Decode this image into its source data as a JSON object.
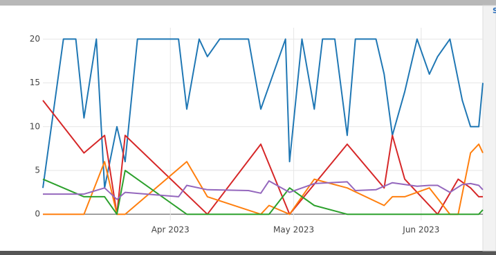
{
  "side_panel": {
    "label": "S"
  },
  "chart_data": {
    "type": "line",
    "xlim": [
      0,
      107
    ],
    "xticks": [
      {
        "value": 31,
        "label": "Apr 2023"
      },
      {
        "value": 61,
        "label": "May 2023"
      },
      {
        "value": 92,
        "label": "Jun 2023"
      }
    ],
    "ylim": [
      -0.7,
      21.3
    ],
    "yticks": [
      0,
      5,
      10,
      15,
      20
    ],
    "grid": true,
    "series": [
      {
        "color": "#1f77b4",
        "x": [
          0,
          5,
          8,
          10,
          13,
          15,
          18,
          20,
          23,
          33,
          35,
          38,
          40,
          43,
          50,
          53,
          59,
          60,
          63,
          66,
          68,
          71,
          74,
          76,
          81,
          83,
          85,
          88,
          91,
          94,
          96,
          99,
          102,
          104,
          106,
          107
        ],
        "values": [
          3,
          20,
          20,
          11,
          20,
          3,
          10,
          6,
          20,
          20,
          12,
          20,
          18,
          20,
          20,
          12,
          20,
          6,
          20,
          12,
          20,
          20,
          9,
          20,
          20,
          16,
          9,
          14,
          20,
          16,
          18,
          20,
          13,
          10,
          10,
          15
        ]
      },
      {
        "color": "#d62728",
        "x": [
          0,
          10,
          15,
          18,
          20,
          40,
          53,
          60,
          74,
          83,
          85,
          88,
          96,
          101,
          104,
          106,
          107
        ],
        "values": [
          13,
          7,
          9,
          0,
          9,
          0,
          8,
          0,
          8,
          3,
          9,
          4,
          0,
          4,
          3,
          2,
          2
        ]
      },
      {
        "color": "#ff7f0e",
        "x": [
          0,
          10,
          15,
          18,
          20,
          35,
          40,
          53,
          55,
          60,
          66,
          74,
          83,
          85,
          88,
          94,
          99,
          101,
          104,
          106,
          107
        ],
        "values": [
          0,
          0,
          6,
          0,
          0,
          6,
          2,
          0,
          1,
          0,
          4,
          3,
          1,
          2,
          2,
          3,
          0,
          0,
          7,
          8,
          7
        ]
      },
      {
        "color": "#2ca02c",
        "x": [
          0,
          10,
          15,
          18,
          20,
          35,
          55,
          60,
          66,
          74,
          106,
          107
        ],
        "values": [
          4,
          2,
          2,
          0,
          5,
          0,
          0,
          3,
          1,
          0,
          0,
          0.5
        ]
      },
      {
        "color": "#9467bd",
        "x": [
          0,
          10,
          15,
          18,
          20,
          33,
          35,
          40,
          50,
          53,
          55,
          60,
          66,
          74,
          76,
          81,
          83,
          85,
          91,
          94,
          96,
          99,
          102,
          104,
          106,
          107
        ],
        "values": [
          2.3,
          2.3,
          3,
          1.7,
          2.5,
          2,
          3.3,
          2.8,
          2.7,
          2.4,
          3.8,
          2.5,
          3.5,
          3.7,
          2.7,
          2.8,
          3.2,
          3.6,
          3.2,
          3.3,
          3.3,
          2.5,
          3.4,
          3.5,
          3.3,
          2.8
        ]
      }
    ]
  }
}
